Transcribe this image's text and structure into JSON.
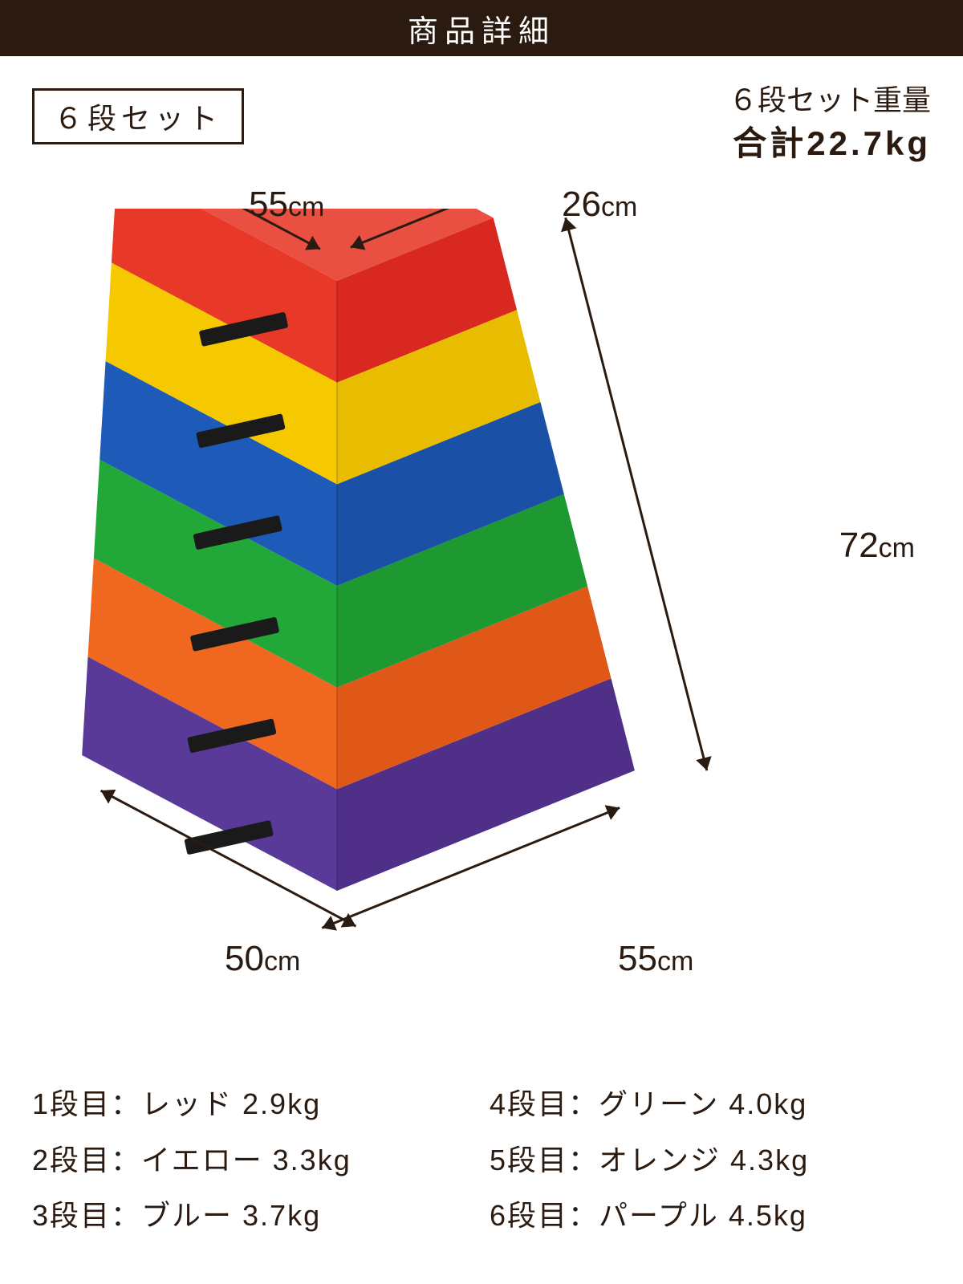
{
  "header": {
    "title": "商品詳細"
  },
  "badge": {
    "label": "６段セット"
  },
  "weight": {
    "label": "６段セット重量",
    "total": "合計22.7kg"
  },
  "dimensions": {
    "top_depth": "55",
    "top_width": "26",
    "height": "72",
    "bottom_depth": "50",
    "bottom_width": "55",
    "unit": "cm"
  },
  "tiers": [
    {
      "label": "1段目：レッド 2.9kg",
      "color_top": "#e83828",
      "color_side": "#d82820"
    },
    {
      "label": "2段目：イエロー 3.3kg",
      "color_top": "#f5c800",
      "color_side": "#e8bc00"
    },
    {
      "label": "3段目：ブルー 3.7kg",
      "color_top": "#1e5bb8",
      "color_side": "#1a50a5"
    },
    {
      "label": "4段目：グリーン 4.0kg",
      "color_top": "#22a838",
      "color_side": "#1e9830"
    },
    {
      "label": "5段目：オレンジ 4.3kg",
      "color_top": "#f06820",
      "color_side": "#e05818"
    },
    {
      "label": "6段目：パープル 4.5kg",
      "color_top": "#5a3a98",
      "color_side": "#502f88"
    }
  ],
  "style": {
    "header_bg": "#2a1a0f",
    "header_fg": "#ffffff",
    "body_bg": "#ffffff",
    "text_color": "#2a1a0f",
    "handle_color": "#1a1a1a",
    "badge_border": "#2a1a0f",
    "arrow_color": "#2a1a0f"
  }
}
